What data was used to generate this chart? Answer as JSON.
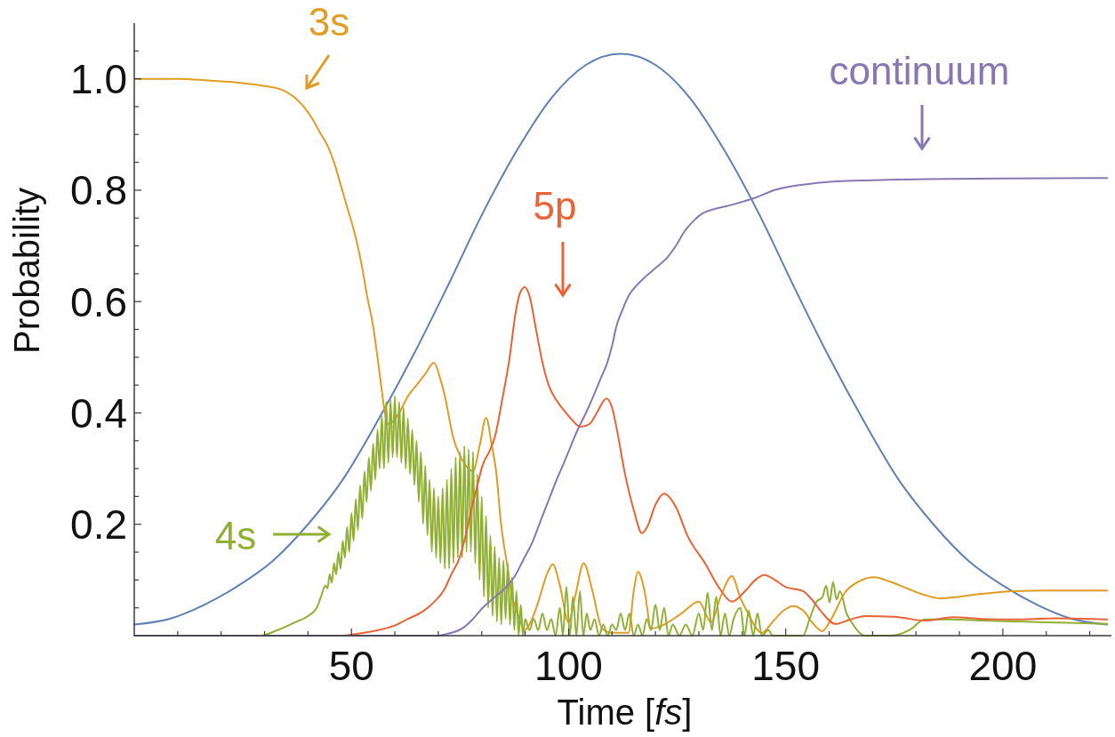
{
  "chart_data": {
    "type": "line",
    "xlabel": "Time [fs]",
    "ylabel": "Probability",
    "xlim": [
      0,
      225
    ],
    "ylim": [
      0,
      1.1
    ],
    "xticks": [
      {
        "value": 10,
        "label": null
      },
      {
        "value": 20,
        "label": null
      },
      {
        "value": 30,
        "label": null
      },
      {
        "value": 40,
        "label": null
      },
      50,
      {
        "value": 60,
        "label": null
      },
      {
        "value": 70,
        "label": null
      },
      {
        "value": 80,
        "label": null
      },
      {
        "value": 90,
        "label": null
      },
      100,
      {
        "value": 110,
        "label": null
      },
      {
        "value": 120,
        "label": null
      },
      {
        "value": 130,
        "label": null
      },
      {
        "value": 140,
        "label": null
      },
      150,
      {
        "value": 160,
        "label": null
      },
      {
        "value": 170,
        "label": null
      },
      {
        "value": 180,
        "label": null
      },
      {
        "value": 190,
        "label": null
      },
      200,
      {
        "value": 210,
        "label": null
      },
      {
        "value": 220,
        "label": null
      }
    ],
    "yticks": [
      {
        "value": 0.05,
        "label": null
      },
      {
        "value": 0.1,
        "label": null
      },
      {
        "value": 0.15,
        "label": null
      },
      0.2,
      {
        "value": 0.25,
        "label": null
      },
      {
        "value": 0.3,
        "label": null
      },
      {
        "value": 0.35,
        "label": null
      },
      0.4,
      {
        "value": 0.45,
        "label": null
      },
      {
        "value": 0.5,
        "label": null
      },
      {
        "value": 0.55,
        "label": null
      },
      0.6,
      {
        "value": 0.65,
        "label": null
      },
      {
        "value": 0.7,
        "label": null
      },
      {
        "value": 0.75,
        "label": null
      },
      0.8,
      {
        "value": 0.85,
        "label": null
      },
      {
        "value": 0.9,
        "label": null
      },
      {
        "value": 0.95,
        "label": null
      },
      {
        "value": 1,
        "label": "1.0"
      },
      {
        "value": 1.05,
        "label": null
      }
    ],
    "series": [
      {
        "color": "#5e81b5",
        "x": [
          0,
          8,
          16,
          24,
          32,
          40,
          48,
          56,
          64,
          72,
          80,
          88,
          96,
          104,
          112,
          120,
          128,
          136,
          144,
          152,
          160,
          168,
          176,
          184,
          192,
          200,
          208,
          216,
          224
        ],
        "values": [
          0.02,
          0.03,
          0.055,
          0.09,
          0.135,
          0.2,
          0.28,
          0.385,
          0.5,
          0.625,
          0.755,
          0.87,
          0.965,
          1.025,
          1.045,
          1.025,
          0.965,
          0.87,
          0.755,
          0.625,
          0.5,
          0.385,
          0.28,
          0.2,
          0.135,
          0.09,
          0.055,
          0.03,
          0.02
        ]
      },
      {
        "name": "3s",
        "color": "#e19c24",
        "x": [
          0,
          10,
          17,
          24,
          30,
          34,
          37,
          39,
          41,
          43,
          44.5,
          46,
          47.5,
          49,
          51,
          52.5,
          53.6,
          55,
          56,
          57,
          57.7,
          58.5,
          61,
          63,
          65,
          67,
          69,
          70.5,
          71.4,
          73.5,
          75.5,
          78,
          79.5,
          81,
          82.3,
          83.4,
          84.4,
          85.8,
          87,
          88.5,
          89.9,
          91,
          93,
          95,
          96.4,
          98,
          100,
          101.5,
          103.5,
          105.5,
          107.7,
          110,
          113.8,
          115,
          116,
          117.5,
          119,
          122,
          126,
          130,
          132.8,
          135,
          137.6,
          139.6,
          141,
          144.5,
          147,
          149.5,
          151.7,
          154,
          156.5,
          158.4,
          160.5,
          163.6,
          167,
          170.3,
          174,
          177.9,
          182,
          185.5,
          190,
          195,
          202.5,
          210,
          224
        ],
        "values": [
          1,
          1,
          0.997,
          0.993,
          0.987,
          0.98,
          0.966,
          0.95,
          0.928,
          0.9,
          0.88,
          0.85,
          0.81,
          0.77,
          0.715,
          0.66,
          0.61,
          0.556,
          0.5,
          0.44,
          0.4,
          0.38,
          0.4,
          0.43,
          0.45,
          0.47,
          0.49,
          0.46,
          0.434,
          0.354,
          0.316,
          0.295,
          0.34,
          0.391,
          0.343,
          0.29,
          0.204,
          0.13,
          0.07,
          0.035,
          0.01,
          0.02,
          0.06,
          0.11,
          0.128,
          0.09,
          0.024,
          0.07,
          0.13,
          0.08,
          0.013,
          0.005,
          0.005,
          0.08,
          0.115,
          0.08,
          0.013,
          0.02,
          0.04,
          0.061,
          0.024,
          0.07,
          0.107,
          0.067,
          0.045,
          0.005,
          0.025,
          0.045,
          0.053,
          0.045,
          0.02,
          0.008,
          0.03,
          0.077,
          0.098,
          0.105,
          0.097,
          0.085,
          0.073,
          0.067,
          0.07,
          0.075,
          0.08,
          0.081,
          0.081
        ]
      },
      {
        "name": "4s",
        "color": "#8fb032",
        "x": [
          0,
          29,
          33,
          37,
          40,
          42,
          43,
          44,
          44.5,
          45,
          45.5,
          46,
          46.5,
          47,
          47.5,
          48,
          48.5,
          49,
          49.5,
          50,
          50.5,
          51,
          51.5,
          52,
          52.5,
          53,
          53.5,
          54,
          54.5,
          55,
          55.5,
          56,
          56.5,
          57,
          57.5,
          58,
          58.5,
          59,
          59.5,
          60,
          60.5,
          61,
          61.5,
          62,
          62.5,
          63,
          63.5,
          64,
          64.5,
          65,
          65.5,
          66,
          66.5,
          67,
          67.5,
          68,
          68.5,
          69,
          69.5,
          70,
          70.5,
          71,
          71.5,
          72,
          72.5,
          73,
          73.5,
          74,
          74.5,
          75,
          75.5,
          76,
          76.5,
          77,
          77.5,
          78,
          78.5,
          79,
          79.5,
          80,
          80.5,
          81,
          81.5,
          82,
          82.5,
          83,
          83.5,
          84,
          84.5,
          85,
          85.5,
          86,
          86.5,
          87,
          87.5,
          88,
          88.5,
          89,
          89.5,
          90,
          91,
          92,
          93,
          94,
          95,
          96,
          97,
          98,
          98.7,
          99.5,
          100.3,
          101,
          101.8,
          102.6,
          103.4,
          104.2,
          105,
          106,
          107,
          108,
          109,
          110,
          111,
          112,
          113,
          114,
          115,
          116,
          117,
          118,
          119,
          120,
          121,
          122,
          123,
          124,
          125.5,
          127,
          128.5,
          130,
          131,
          132,
          133,
          134,
          135,
          136,
          137,
          138,
          139.6,
          140.5,
          141.5,
          142.5,
          143.5,
          144.5,
          146,
          147,
          154,
          155.5,
          157,
          158.5,
          159.3,
          160.1,
          160.9,
          161.7,
          162.5,
          164,
          165.5,
          167,
          168,
          174,
          178.5,
          182,
          188,
          195.7,
          205,
          215,
          224
        ],
        "values": [
          0,
          0,
          0.01,
          0.024,
          0.035,
          0.05,
          0.07,
          0.09,
          0.085,
          0.11,
          0.095,
          0.13,
          0.11,
          0.15,
          0.12,
          0.17,
          0.14,
          0.195,
          0.15,
          0.22,
          0.17,
          0.245,
          0.19,
          0.27,
          0.21,
          0.295,
          0.24,
          0.32,
          0.26,
          0.345,
          0.28,
          0.37,
          0.3,
          0.395,
          0.3,
          0.42,
          0.31,
          0.425,
          0.32,
          0.43,
          0.32,
          0.42,
          0.31,
          0.41,
          0.3,
          0.39,
          0.29,
          0.37,
          0.27,
          0.35,
          0.24,
          0.33,
          0.2,
          0.305,
          0.18,
          0.28,
          0.15,
          0.265,
          0.14,
          0.25,
          0.13,
          0.265,
          0.12,
          0.28,
          0.12,
          0.3,
          0.13,
          0.32,
          0.14,
          0.33,
          0.14,
          0.34,
          0.15,
          0.335,
          0.15,
          0.33,
          0.13,
          0.29,
          0.1,
          0.25,
          0.07,
          0.215,
          0.05,
          0.18,
          0.035,
          0.16,
          0.025,
          0.14,
          0.02,
          0.135,
          0.03,
          0.13,
          0.02,
          0.105,
          0.01,
          0.08,
          0,
          0.055,
          0,
          0.03,
          0.01,
          0.03,
          0.01,
          0.04,
          0.01,
          0.03,
          0,
          0.05,
          0,
          0.088,
          0,
          0.07,
          0,
          0.08,
          0,
          0.04,
          0.01,
          0.03,
          0,
          0.02,
          0,
          0.02,
          0.01,
          0.04,
          0.01,
          0.04,
          0,
          0.02,
          0,
          0.03,
          0.01,
          0.056,
          0.01,
          0.05,
          0,
          0.02,
          0,
          0.02,
          0,
          0.04,
          0.01,
          0.077,
          0.01,
          0.07,
          0,
          0.04,
          0,
          0.03,
          0.05,
          0,
          0.045,
          0,
          0.04,
          0,
          0.01,
          0,
          0,
          0.03,
          0.06,
          0.07,
          0.09,
          0.06,
          0.096,
          0.065,
          0.08,
          0.04,
          0.02,
          0.005,
          0,
          0,
          0.01,
          0.029,
          0.029,
          0.027,
          0.025,
          0.023,
          0.021
        ]
      },
      {
        "name": "5p",
        "color": "#eb6235",
        "x": [
          0,
          48,
          51,
          55,
          60.2,
          63,
          66.7,
          69,
          71.4,
          73,
          74.9,
          76.3,
          77.6,
          79,
          80.2,
          81.7,
          83.1,
          84.7,
          86.4,
          87.8,
          88.8,
          89.9,
          91,
          92.5,
          94,
          95.4,
          97,
          98.7,
          100.5,
          102.8,
          104.8,
          106.5,
          108.7,
          110,
          111,
          113,
          115,
          116.9,
          118.1,
          120,
          122,
          124.7,
          127.4,
          131.4,
          134.9,
          137.6,
          141,
          143,
          145.1,
          147.5,
          149.8,
          154,
          156,
          158,
          161.5,
          164.5,
          168.3,
          175,
          182,
          188.7,
          195,
          202.5,
          212,
          224
        ],
        "values": [
          0,
          0,
          0.003,
          0.008,
          0.019,
          0.03,
          0.045,
          0.06,
          0.083,
          0.11,
          0.14,
          0.18,
          0.226,
          0.27,
          0.306,
          0.33,
          0.359,
          0.423,
          0.498,
          0.58,
          0.615,
          0.626,
          0.61,
          0.55,
          0.49,
          0.45,
          0.425,
          0.407,
          0.39,
          0.375,
          0.38,
          0.4,
          0.426,
          0.41,
          0.375,
          0.29,
          0.226,
          0.184,
          0.195,
          0.235,
          0.255,
          0.231,
          0.179,
          0.13,
          0.083,
          0.061,
          0.083,
          0.1,
          0.109,
          0.1,
          0.088,
          0.08,
          0.065,
          0.045,
          0.021,
          0.028,
          0.035,
          0.034,
          0.027,
          0.033,
          0.03,
          0.029,
          0.031,
          0.029
        ]
      },
      {
        "name": "continuum",
        "color": "#8778b3",
        "x": [
          0,
          70,
          72,
          75.5,
          78,
          80.2,
          82.5,
          85.1,
          87.8,
          89.5,
          91.9,
          93.5,
          95.4,
          97,
          98.7,
          100.5,
          102.1,
          104,
          105.6,
          107.3,
          108.9,
          110,
          111,
          112.4,
          113.8,
          115.8,
          117.9,
          120.3,
          122.6,
          124.7,
          126.7,
          128.8,
          130.8,
          133.5,
          136.3,
          139.5,
          142.5,
          147.8,
          154,
          161.5,
          170,
          182,
          200,
          224
        ],
        "values": [
          0,
          0,
          0.003,
          0.013,
          0.03,
          0.05,
          0.066,
          0.083,
          0.109,
          0.135,
          0.172,
          0.205,
          0.243,
          0.275,
          0.306,
          0.34,
          0.37,
          0.4,
          0.428,
          0.46,
          0.49,
          0.52,
          0.555,
          0.585,
          0.61,
          0.63,
          0.646,
          0.662,
          0.678,
          0.7,
          0.726,
          0.745,
          0.758,
          0.766,
          0.771,
          0.778,
          0.785,
          0.801,
          0.81,
          0.816,
          0.818,
          0.82,
          0.821,
          0.822
        ]
      }
    ]
  }
}
